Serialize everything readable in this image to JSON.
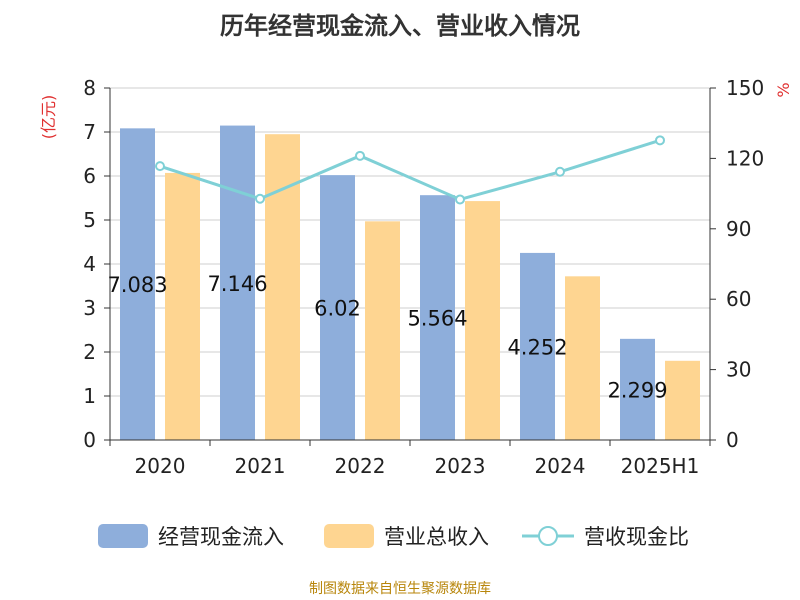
{
  "title": "历年经营现金流入、营业收入情况",
  "source": "制图数据来自恒生聚源数据库",
  "chart_data": {
    "type": "bar",
    "categories": [
      "2020",
      "2021",
      "2022",
      "2023",
      "2024",
      "2025H1"
    ],
    "series": [
      {
        "name": "经营现金流入",
        "kind": "bar",
        "axis": "left",
        "color": "#8eaedb",
        "values": [
          7.083,
          7.146,
          6.02,
          5.564,
          4.252,
          2.299
        ],
        "labels": [
          "7.083",
          "7.146",
          "6.02",
          "5.564",
          "4.252",
          "2.299"
        ]
      },
      {
        "name": "营业总收入",
        "kind": "bar",
        "axis": "left",
        "color": "#fed591",
        "values": [
          6.07,
          6.95,
          4.97,
          5.43,
          3.72,
          1.8
        ]
      },
      {
        "name": "营收现金比",
        "kind": "line",
        "axis": "right",
        "color": "#7fd0d6",
        "values": [
          116.7,
          102.8,
          121.1,
          102.5,
          114.3,
          127.7
        ]
      }
    ],
    "y_left": {
      "label": "(亿元)",
      "min": 0,
      "max": 8,
      "ticks": [
        "0",
        "1",
        "2",
        "3",
        "4",
        "5",
        "6",
        "7",
        "8"
      ]
    },
    "y_right": {
      "label": "%",
      "min": 0,
      "max": 150,
      "ticks": [
        "0",
        "30",
        "60",
        "90",
        "120",
        "150"
      ]
    },
    "grid": true,
    "legend_position": "bottom"
  }
}
